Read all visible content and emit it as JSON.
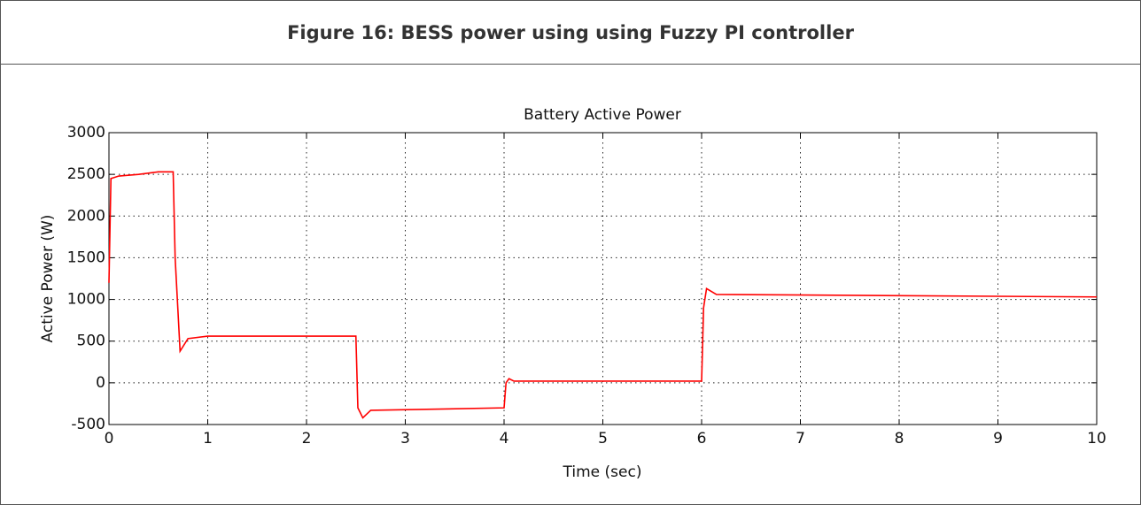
{
  "figure_caption": "Figure 16: BESS power using using Fuzzy PI controller",
  "chart_data": {
    "type": "line",
    "title": "Battery Active Power",
    "x_label": "Time (sec)",
    "y_label": "Active Power (W)",
    "x": [
      0,
      0.02,
      0.1,
      0.3,
      0.5,
      0.65,
      0.67,
      0.72,
      0.8,
      1.0,
      2.5,
      2.52,
      2.57,
      2.65,
      4.0,
      4.02,
      4.05,
      4.1,
      6.0,
      6.02,
      6.05,
      6.15,
      10
    ],
    "series": [
      {
        "name": "Battery Active Power",
        "color": "#ff0000",
        "values": [
          1200,
          2450,
          2480,
          2500,
          2530,
          2530,
          1500,
          380,
          530,
          560,
          560,
          -300,
          -420,
          -330,
          -300,
          0,
          50,
          20,
          20,
          900,
          1130,
          1060,
          1030
        ]
      }
    ],
    "xlim": [
      0,
      10
    ],
    "xticks": [
      0,
      1,
      2,
      3,
      4,
      5,
      6,
      7,
      8,
      9,
      10
    ],
    "ylim": [
      -500,
      3000
    ],
    "yticks": [
      -500,
      0,
      500,
      1000,
      1500,
      2000,
      2500,
      3000
    ],
    "grid": true
  }
}
